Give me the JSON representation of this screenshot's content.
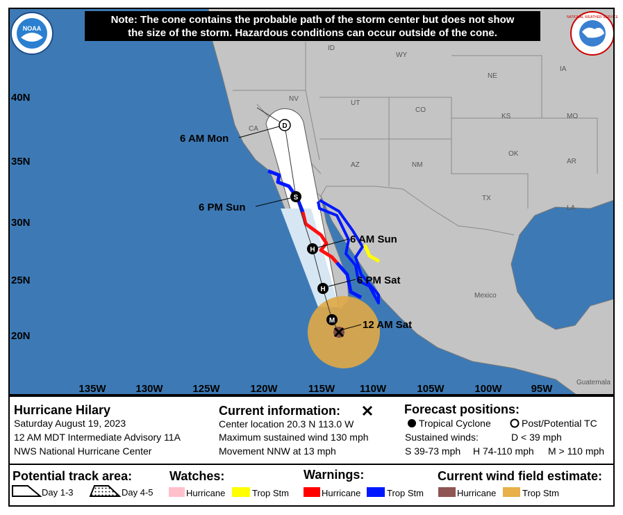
{
  "note": {
    "lines": [
      "Note: The cone contains the probable path of the storm center but does not show",
      "the size of the storm. Hazardous conditions can occur outside of the cone."
    ]
  },
  "logos": {
    "left": "NOAA",
    "right": "NATIONAL WEATHER SERVICE"
  },
  "map": {
    "lat_labels": [
      "40N",
      "35N",
      "30N",
      "25N",
      "20N"
    ],
    "lon_labels": [
      "135W",
      "130W",
      "125W",
      "120W",
      "115W",
      "110W",
      "105W",
      "100W",
      "95W"
    ],
    "states": [
      "ID",
      "WY",
      "NV",
      "UT",
      "CO",
      "NE",
      "IA",
      "CA",
      "KS",
      "MO",
      "AZ",
      "NM",
      "OK",
      "AR",
      "TX",
      "LA"
    ],
    "countries": [
      "Mexico",
      "Guatemala"
    ],
    "track_labels": [
      "6 AM Mon",
      "6 PM Sun",
      "6 AM Sun",
      "6 PM Sat",
      "12 AM Sat"
    ],
    "point_letters": [
      "D",
      "S",
      "H",
      "H",
      "M"
    ]
  },
  "info": {
    "storm": {
      "name": "Hurricane Hilary",
      "lines": [
        "Saturday August 19, 2023",
        "12 AM MDT Intermediate Advisory 11A",
        "NWS National Hurricane Center"
      ]
    },
    "current": {
      "title": "Current information:",
      "lines": [
        "Center location 20.3 N 113.0 W",
        "Maximum sustained wind 130 mph",
        "Movement NNW at 13 mph"
      ]
    },
    "forecast": {
      "title": "Forecast positions:",
      "tropical": "Tropical Cyclone",
      "post": "Post/Potential TC",
      "winds_title": "Sustained winds:",
      "d": "D < 39 mph",
      "s": "S 39-73 mph",
      "h": "H 74-110 mph",
      "m": "M > 110 mph"
    }
  },
  "legend": {
    "track_area": {
      "title": "Potential track area:",
      "day13": "Day 1-3",
      "day45": "Day 4-5"
    },
    "watches": {
      "title": "Watches:",
      "hurricane": "Hurricane",
      "trop": "Trop Stm"
    },
    "warnings": {
      "title": "Warnings:",
      "hurricane": "Hurricane",
      "trop": "Trop Stm"
    },
    "wind": {
      "title": "Current wind field estimate:",
      "hurricane": "Hurricane",
      "trop": "Trop Stm"
    }
  }
}
